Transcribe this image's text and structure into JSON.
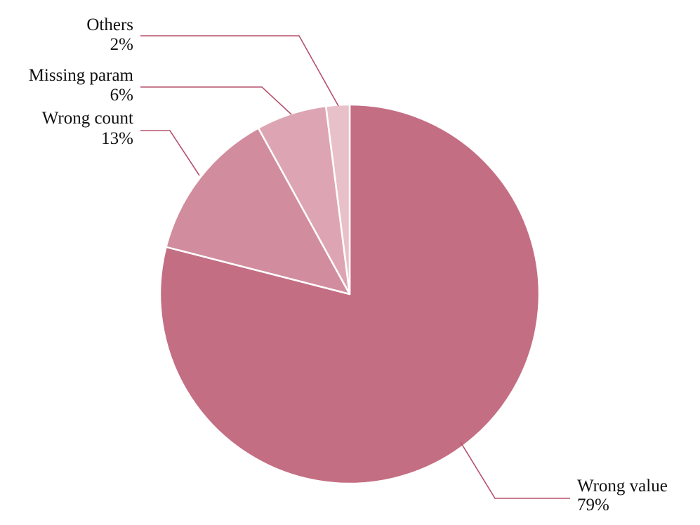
{
  "chart_data": {
    "type": "pie",
    "title": "",
    "slices": [
      {
        "label": "Wrong value",
        "percent_label": "79%",
        "value": 79,
        "color": "#c46e83"
      },
      {
        "label": "Wrong count",
        "percent_label": "13%",
        "value": 13,
        "color": "#d18d9d"
      },
      {
        "label": "Missing param",
        "percent_label": "6%",
        "value": 6,
        "color": "#dda5b3"
      },
      {
        "label": "Others",
        "percent_label": "2%",
        "value": 2,
        "color": "#e8c0ca"
      }
    ],
    "leader_line_color": "#b5506c",
    "slice_border_color": "#ffffff",
    "start_angle": "12 o'clock",
    "direction": "clockwise"
  }
}
